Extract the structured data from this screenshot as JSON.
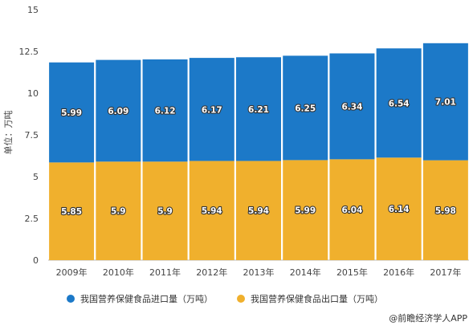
{
  "chart_data": {
    "type": "bar",
    "stacked": true,
    "categories": [
      "2009年",
      "2010年",
      "2011年",
      "2012年",
      "2013年",
      "2014年",
      "2015年",
      "2016年",
      "2017年"
    ],
    "series": [
      {
        "name": "我国营养保健食品出口量（万吨）",
        "color": "#f0b02d",
        "values": [
          5.85,
          5.9,
          5.9,
          5.94,
          5.94,
          5.99,
          6.04,
          6.14,
          5.98
        ],
        "labels": [
          "5.85",
          "5.9",
          "5.9",
          "5.94",
          "5.94",
          "5.99",
          "6.04",
          "6.14",
          "5.98"
        ]
      },
      {
        "name": "我国营养保健食品进口量（万吨）",
        "color": "#1c79c8",
        "values": [
          5.99,
          6.09,
          6.12,
          6.17,
          6.21,
          6.25,
          6.34,
          6.54,
          7.01
        ],
        "labels": [
          "5.99",
          "6.09",
          "6.12",
          "6.17",
          "6.21",
          "6.25",
          "6.34",
          "6.54",
          "7.01"
        ]
      }
    ],
    "yticks": [
      "0",
      "2.5",
      "5",
      "7.5",
      "10",
      "12.5",
      "15"
    ],
    "ylabel": "单位：万吨",
    "ylim": [
      0,
      15
    ],
    "grid": false,
    "legend": {
      "placement": "bottom",
      "items": [
        {
          "label": "我国营养保健食品进口量（万吨）",
          "color": "#1c79c8"
        },
        {
          "label": "我国营养保健食品出口量（万吨）",
          "color": "#f0b02d"
        }
      ]
    },
    "credit": "@前瞻经济学人APP"
  }
}
